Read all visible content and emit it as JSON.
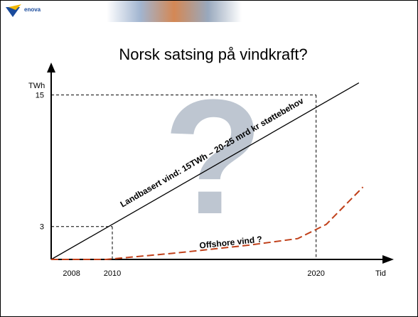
{
  "header": {
    "logo": "enova"
  },
  "chart_data": {
    "type": "line",
    "title": "Norsk satsing på vindkraft?",
    "y_label": "TWh",
    "x_label": "Tid",
    "xlim": [
      2007,
      2023.5
    ],
    "xticks": [
      2008,
      2010,
      2020
    ],
    "ylim": [
      0,
      17.5
    ],
    "yticks": [
      3,
      15
    ],
    "guides": [
      {
        "x": 2010,
        "y": 3
      },
      {
        "x": 2020,
        "y": 15
      }
    ],
    "series": [
      {
        "color": "#000000",
        "dash": false,
        "x": [
          2007,
          2022.1
        ],
        "values": [
          0,
          16.1
        ]
      },
      {
        "color": "#c0401a",
        "dash": true,
        "x": [
          2007,
          2009.7,
          2013.2,
          2016.7,
          2019.1,
          2020.5,
          2022.3
        ],
        "values": [
          0,
          0,
          0.6,
          1.3,
          1.9,
          3.2,
          6.6
        ]
      }
    ],
    "annotations": [
      "Landbasert vind: 15TWh – 20-25 mrd kr støttebehov",
      "Offshore vind ?",
      "?"
    ]
  }
}
